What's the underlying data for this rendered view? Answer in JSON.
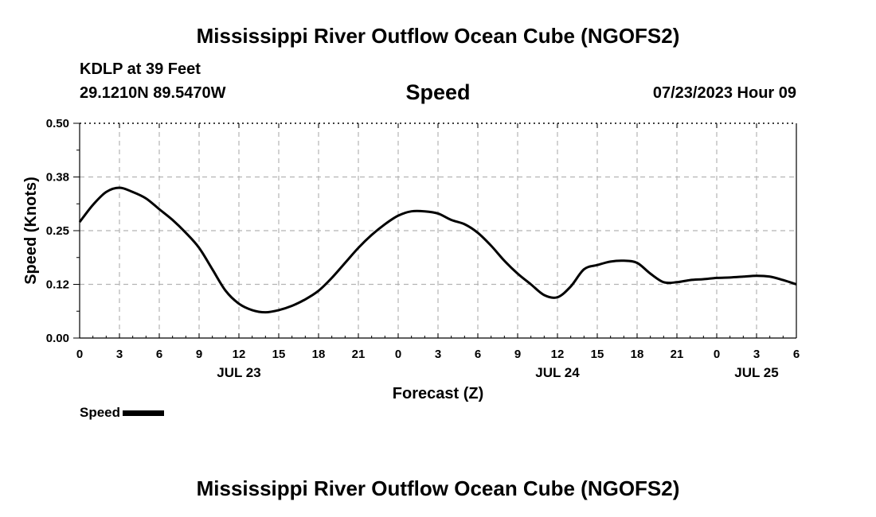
{
  "header": {
    "title": "Mississippi River Outflow Ocean Cube (NGOFS2)",
    "station": "KDLP at 39 Feet",
    "coords": "29.1210N  89.5470W",
    "subtitle": "Speed",
    "datetime": "07/23/2023 Hour 09"
  },
  "footer": {
    "title": "Mississippi River Outflow Ocean Cube (NGOFS2)"
  },
  "legend": {
    "label": "Speed"
  },
  "chart_data": {
    "type": "line",
    "title": "Speed",
    "xlabel": "Forecast (Z)",
    "ylabel": "Speed (Knots)",
    "ylim": [
      0,
      0.5
    ],
    "xlim": [
      0,
      54
    ],
    "x_unit": "hours from 07/23/2023 00Z",
    "y_ticks": [
      "0.00",
      "0.12",
      "0.25",
      "0.38",
      "0.50"
    ],
    "y_tick_values": [
      0,
      0.125,
      0.25,
      0.375,
      0.5
    ],
    "x_ticks": [
      "0",
      "3",
      "6",
      "9",
      "12",
      "15",
      "18",
      "21",
      "0",
      "3",
      "6",
      "9",
      "12",
      "15",
      "18",
      "21",
      "0",
      "3",
      "6"
    ],
    "date_labels": [
      {
        "label": "JUL 23",
        "at": 12
      },
      {
        "label": "JUL 24",
        "at": 36
      },
      {
        "label": "JUL 25",
        "at": 51
      }
    ],
    "grid": true,
    "line_color": "#000000",
    "series": [
      {
        "name": "Speed",
        "x": [
          0,
          1,
          2,
          3,
          4,
          5,
          6,
          7,
          8,
          9,
          10,
          11,
          12,
          13,
          14,
          15,
          16,
          17,
          18,
          19,
          20,
          21,
          22,
          23,
          24,
          25,
          26,
          27,
          28,
          29,
          30,
          31,
          32,
          33,
          34,
          35,
          36,
          37,
          38,
          39,
          40,
          41,
          42,
          43,
          44,
          45,
          46,
          47,
          48,
          49,
          50,
          51,
          52,
          53,
          54
        ],
        "values": [
          0.27,
          0.31,
          0.34,
          0.35,
          0.34,
          0.325,
          0.3,
          0.275,
          0.245,
          0.21,
          0.16,
          0.11,
          0.08,
          0.065,
          0.06,
          0.065,
          0.075,
          0.09,
          0.11,
          0.14,
          0.175,
          0.21,
          0.24,
          0.265,
          0.285,
          0.295,
          0.295,
          0.29,
          0.275,
          0.265,
          0.245,
          0.215,
          0.18,
          0.15,
          0.125,
          0.1,
          0.095,
          0.12,
          0.16,
          0.17,
          0.178,
          0.18,
          0.175,
          0.15,
          0.13,
          0.13,
          0.135,
          0.137,
          0.14,
          0.141,
          0.143,
          0.145,
          0.143,
          0.135,
          0.125
        ]
      }
    ]
  }
}
